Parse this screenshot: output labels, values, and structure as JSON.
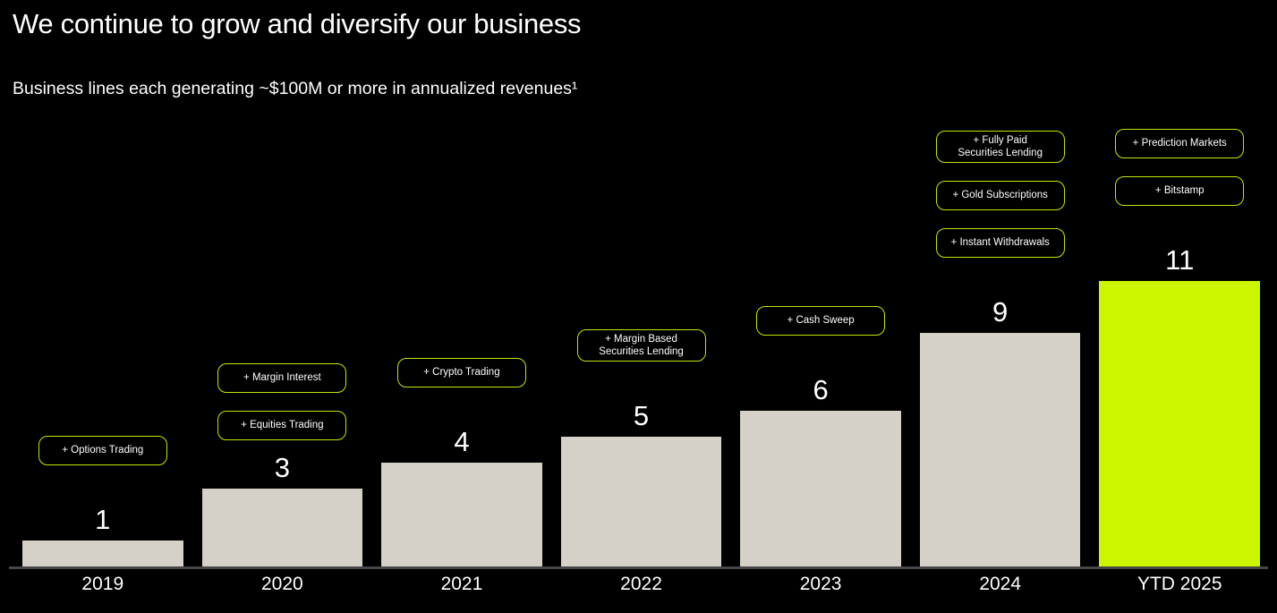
{
  "header": {
    "title": "We continue to grow and diversify our business",
    "subtitle": "Business lines each generating ~$100M or more in annualized revenues¹"
  },
  "colors": {
    "background": "#000000",
    "bar_fill": "#d5d1c9",
    "highlight_fill": "#ccf500",
    "badge_border": "#c2e600",
    "axis_line": "#47474a",
    "text": "#ffffff"
  },
  "chart_data": {
    "type": "bar",
    "title": "Business lines each generating ~$100M or more in annualized revenues",
    "categories": [
      "2019",
      "2020",
      "2021",
      "2022",
      "2023",
      "2024",
      "YTD 2025"
    ],
    "values": [
      1,
      3,
      4,
      5,
      6,
      9,
      11
    ],
    "value_labels": [
      "1",
      "3",
      "4",
      "5",
      "6",
      "9",
      "11"
    ],
    "xlabel": "",
    "ylabel": "",
    "ylim": [
      0,
      11
    ],
    "grid": false,
    "legend": false,
    "highlight_category": "YTD 2025",
    "annotations": [
      {
        "category": "2019",
        "badges": [
          "+ Options Trading"
        ]
      },
      {
        "category": "2020",
        "badges": [
          "+ Margin Interest",
          "+ Equities Trading"
        ]
      },
      {
        "category": "2021",
        "badges": [
          "+ Crypto Trading"
        ]
      },
      {
        "category": "2022",
        "badges": [
          "+ Margin Based\nSecurities Lending"
        ]
      },
      {
        "category": "2023",
        "badges": [
          "+ Cash Sweep"
        ]
      },
      {
        "category": "2024",
        "badges": [
          "+ Fully Paid\nSecurities Lending",
          "+ Gold Subscriptions",
          "+ Instant Withdrawals"
        ]
      },
      {
        "category": "YTD 2025",
        "badges": [
          "+ Prediction Markets",
          "+ Bitstamp"
        ]
      }
    ]
  }
}
